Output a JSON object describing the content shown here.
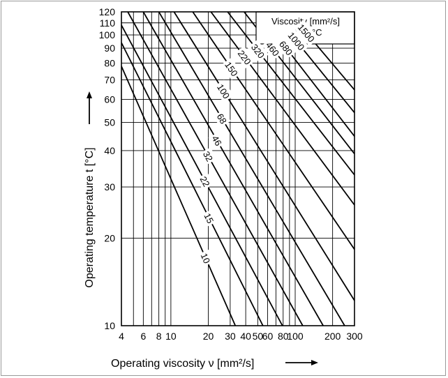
{
  "chart_data": {
    "type": "line",
    "title": "",
    "xlabel": "Operating viscosity ν [mm²/s]",
    "ylabel": "Operating temperature  t [°C]",
    "x_scale": "log",
    "y_scale": "log",
    "xlim": [
      4,
      300
    ],
    "ylim": [
      10,
      120
    ],
    "x_ticks": [
      4,
      6,
      8,
      10,
      20,
      30,
      40,
      50,
      60,
      80,
      100,
      200,
      300
    ],
    "x_tick_labels": [
      "4",
      "6",
      "8",
      "10",
      "20",
      "30",
      "40",
      "50",
      "60",
      "80",
      "100",
      "200",
      "300"
    ],
    "y_ticks": [
      10,
      20,
      30,
      40,
      50,
      60,
      70,
      80,
      90,
      100,
      110,
      120
    ],
    "y_tick_labels": [
      "10",
      "20",
      "30",
      "40",
      "50",
      "60",
      "70",
      "80",
      "90",
      "100",
      "110",
      "120"
    ],
    "grid": true,
    "legend_note": {
      "line1": "Viscosity [mm²/s]",
      "line2": "at 40 °C",
      "position": "top-right"
    },
    "series": [
      {
        "name": "10",
        "points": [
          [
            4,
            78
          ],
          [
            33,
            10
          ]
        ]
      },
      {
        "name": "15",
        "points": [
          [
            4,
            94
          ],
          [
            55,
            10
          ]
        ]
      },
      {
        "name": "22",
        "points": [
          [
            4,
            108
          ],
          [
            79,
            10
          ]
        ]
      },
      {
        "name": "32",
        "points": [
          [
            4.5,
            120
          ],
          [
            115,
            10
          ]
        ]
      },
      {
        "name": "46",
        "points": [
          [
            6,
            120
          ],
          [
            168,
            10
          ]
        ]
      },
      {
        "name": "68",
        "points": [
          [
            8,
            120
          ],
          [
            250,
            10
          ]
        ]
      },
      {
        "name": "100",
        "points": [
          [
            10.6,
            120
          ],
          [
            300,
            12.2
          ]
        ]
      },
      {
        "name": "150",
        "points": [
          [
            15,
            120
          ],
          [
            300,
            18.3
          ]
        ]
      },
      {
        "name": "220",
        "points": [
          [
            21,
            120
          ],
          [
            300,
            26
          ]
        ]
      },
      {
        "name": "320",
        "points": [
          [
            28.6,
            120
          ],
          [
            300,
            33
          ]
        ]
      },
      {
        "name": "460",
        "points": [
          [
            38.8,
            120
          ],
          [
            300,
            39
          ]
        ]
      },
      {
        "name": "680",
        "points": [
          [
            50.4,
            120
          ],
          [
            300,
            44.8
          ]
        ]
      },
      {
        "name": "1000",
        "points": [
          [
            66,
            120
          ],
          [
            300,
            54
          ]
        ]
      },
      {
        "name": "1500",
        "points": [
          [
            88.5,
            120
          ],
          [
            300,
            64.7
          ]
        ]
      }
    ]
  }
}
